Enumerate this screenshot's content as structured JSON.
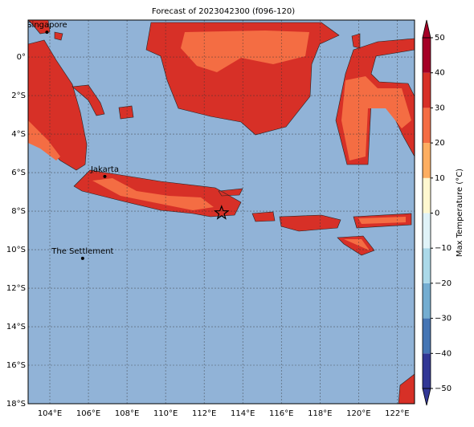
{
  "title": "Forecast of 2023042300 (f096-120)",
  "lonlim": [
    102.875,
    122.9
  ],
  "latlim": [
    -18,
    1.92
  ],
  "lon_ticks": [
    {
      "value": 104,
      "label": "104°E"
    },
    {
      "value": 106,
      "label": "106°E"
    },
    {
      "value": 108,
      "label": "108°E"
    },
    {
      "value": 110,
      "label": "110°E"
    },
    {
      "value": 112,
      "label": "112°E"
    },
    {
      "value": 114,
      "label": "114°E"
    },
    {
      "value": 116,
      "label": "116°E"
    },
    {
      "value": 118,
      "label": "118°E"
    },
    {
      "value": 120,
      "label": "120°E"
    },
    {
      "value": 122,
      "label": "122°E"
    }
  ],
  "lat_ticks": [
    {
      "value": 0,
      "label": "0°"
    },
    {
      "value": -2,
      "label": "2°S"
    },
    {
      "value": -4,
      "label": "4°S"
    },
    {
      "value": -6,
      "label": "6°S"
    },
    {
      "value": -8,
      "label": "8°S"
    },
    {
      "value": -10,
      "label": "10°S"
    },
    {
      "value": -12,
      "label": "12°S"
    },
    {
      "value": -14,
      "label": "14°S"
    },
    {
      "value": -16,
      "label": "16°S"
    },
    {
      "value": -18,
      "label": "18°S"
    }
  ],
  "cities": [
    {
      "name": "Singapore",
      "lon": 103.85,
      "lat": 1.29
    },
    {
      "name": "Jakarta",
      "lon": 106.85,
      "lat": -6.2
    },
    {
      "name": "The Settlement",
      "lon": 105.7,
      "lat": -10.45
    }
  ],
  "star": {
    "lon": 112.9,
    "lat": -8.1
  },
  "colorbar": {
    "label": "Max Temperature (°C)",
    "ticks": [
      {
        "value": -50,
        "label": "−50"
      },
      {
        "value": -40,
        "label": "−40"
      },
      {
        "value": -30,
        "label": "−30"
      },
      {
        "value": -20,
        "label": "−20"
      },
      {
        "value": -10,
        "label": "−10"
      },
      0,
      10,
      20,
      30,
      40,
      50
    ],
    "colors": [
      "#313695",
      "#4575b4",
      "#74add1",
      "#abd9e9",
      "#e0f3f8",
      "#fff8d0",
      "#fdae61",
      "#f46d43",
      "#d73027",
      "#a50026"
    ]
  }
}
